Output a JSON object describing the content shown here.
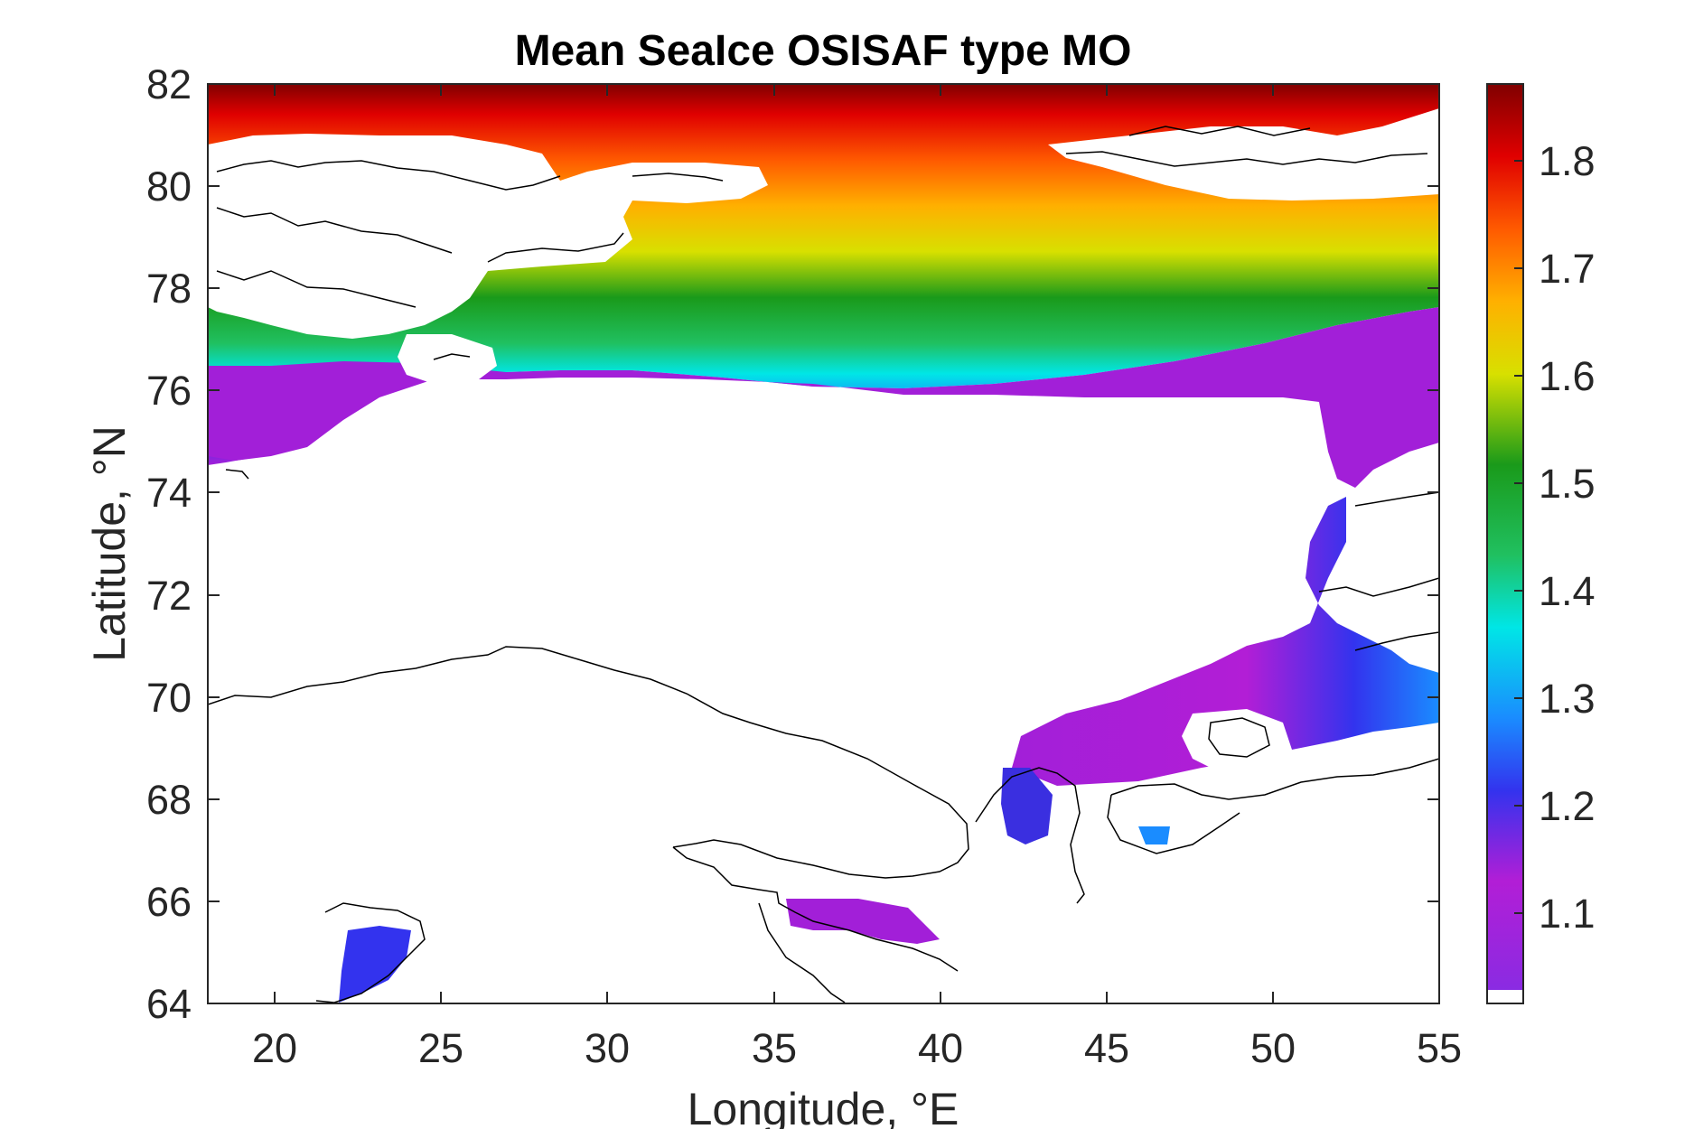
{
  "chart_data": {
    "type": "heatmap",
    "title": "Mean SeaIce OSISAF type MO",
    "xlabel": "Longitude, °E",
    "ylabel": "Latitude, °N",
    "xlim": [
      18,
      55
    ],
    "ylim": [
      64,
      82
    ],
    "xticks": [
      20,
      25,
      30,
      35,
      40,
      45,
      50,
      55
    ],
    "yticks": [
      64,
      66,
      68,
      70,
      72,
      74,
      76,
      78,
      80,
      82
    ],
    "xtick_labels": [
      "20",
      "25",
      "30",
      "35",
      "40",
      "45",
      "50",
      "55"
    ],
    "ytick_labels": [
      "64",
      "66",
      "68",
      "70",
      "72",
      "74",
      "76",
      "78",
      "80",
      "82"
    ],
    "colorbar": {
      "range": [
        1.02,
        1.87
      ],
      "ticks": [
        1.1,
        1.2,
        1.3,
        1.4,
        1.5,
        1.6,
        1.7,
        1.8
      ],
      "tick_labels": [
        "1.1",
        "1.2",
        "1.3",
        "1.4",
        "1.5",
        "1.6",
        "1.7",
        "1.8"
      ],
      "colormap": "jet-like (purple-blue-cyan-green-yellow-red-darkred)"
    },
    "colormap_stops": [
      [
        0.0,
        "#8a2be2"
      ],
      [
        0.12,
        "#b21ed6"
      ],
      [
        0.22,
        "#3333ee"
      ],
      [
        0.3,
        "#1a8cff"
      ],
      [
        0.4,
        "#00e6e6"
      ],
      [
        0.48,
        "#20c060"
      ],
      [
        0.58,
        "#1a9a1a"
      ],
      [
        0.68,
        "#d8e000"
      ],
      [
        0.76,
        "#ffb000"
      ],
      [
        0.84,
        "#ff5a00"
      ],
      [
        0.92,
        "#e00000"
      ],
      [
        1.0,
        "#800000"
      ]
    ],
    "grid": false,
    "description_regions": {
      "north_band_top_value": 1.85,
      "mid_green_band_value": 1.5,
      "south_purple_value": 1.08
    }
  }
}
